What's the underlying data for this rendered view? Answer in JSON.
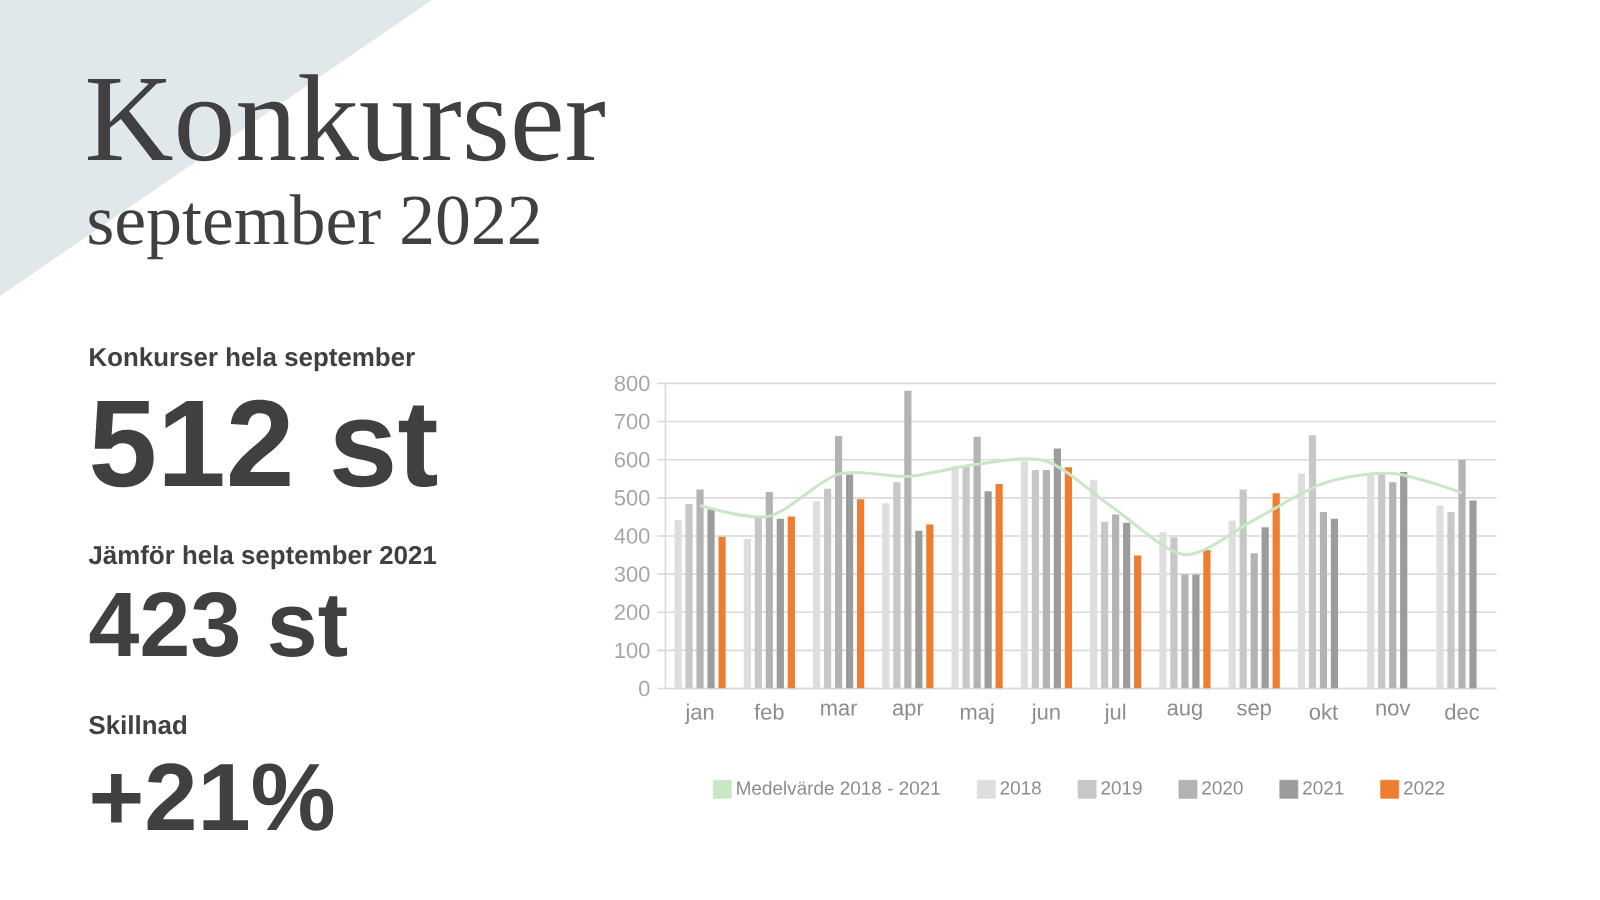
{
  "chart_data": {
    "type": "bar",
    "title": "Konkurser",
    "subtitle": "september 2022",
    "annotations": [
      "Konkurser hela september",
      "512 st",
      "Jämför hela september 2021",
      "423 st",
      "Skillnad",
      "+21%"
    ],
    "categories": [
      "jan",
      "feb",
      "mar",
      "apr",
      "maj",
      "jun",
      "jul",
      "aug",
      "sep",
      "okt",
      "nov",
      "dec"
    ],
    "series": [
      {
        "name": "Medelvärde 2018 - 2021",
        "type": "line",
        "color": "#c9e7c4",
        "values": [
          480,
          452,
          562,
          556,
          588,
          596,
          469,
          351,
          442,
          538,
          564,
          513
        ]
      },
      {
        "name": "2018",
        "color": "#dedede",
        "values": [
          442,
          393,
          491,
          486,
          582,
          596,
          547,
          410,
          440,
          564,
          561,
          480
        ]
      },
      {
        "name": "2019",
        "color": "#c7c7c7",
        "values": [
          484,
          449,
          524,
          541,
          582,
          573,
          437,
          397,
          522,
          664,
          568,
          463
        ]
      },
      {
        "name": "2020",
        "color": "#b3b3b3",
        "values": [
          522,
          515,
          662,
          781,
          660,
          573,
          456,
          299,
          355,
          463,
          541,
          599
        ]
      },
      {
        "name": "2021",
        "color": "#9c9c9c",
        "values": [
          470,
          445,
          561,
          414,
          517,
          629,
          435,
          299,
          423,
          445,
          568,
          493
        ]
      },
      {
        "name": "2022",
        "color": "#ed7d31",
        "values": [
          398,
          451,
          496,
          430,
          536,
          580,
          349,
          363,
          512,
          null,
          null,
          null
        ]
      }
    ],
    "ylim": [
      0,
      800
    ],
    "yticks": [
      0,
      100,
      200,
      300,
      400,
      500,
      600,
      700,
      800
    ],
    "grid": "y",
    "legend": "bottom"
  }
}
